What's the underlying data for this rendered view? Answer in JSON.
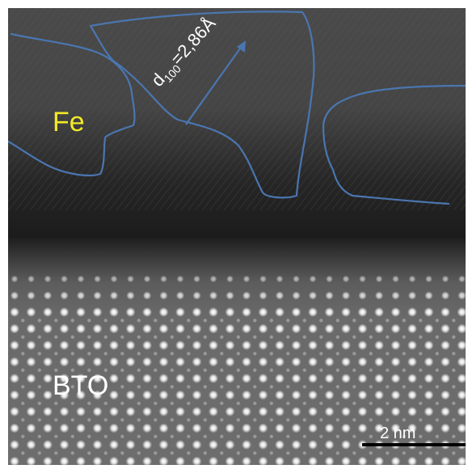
{
  "labels": {
    "iron": "Fe",
    "substrate": "BTO",
    "spacing_symbol": "d",
    "spacing_index": "100",
    "spacing_value": "=2,86Å"
  },
  "scale_bar": {
    "text": "2 nm"
  },
  "colors": {
    "outline": "#4a76b0",
    "iron_label": "#f2ea25",
    "text": "#ffffff"
  }
}
